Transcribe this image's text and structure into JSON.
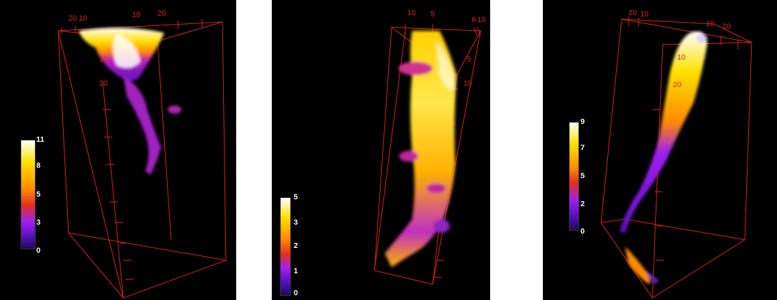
{
  "panels": [
    {
      "axis_labels": [
        "20",
        "10",
        "10",
        "20",
        "10",
        "20"
      ],
      "colorbar": {
        "ticks": [
          "11",
          "8",
          "5",
          "3",
          "0"
        ],
        "max": 11,
        "min": 0
      }
    },
    {
      "axis_labels": [
        "10",
        "5",
        "6",
        "10",
        "5",
        "10"
      ],
      "colorbar": {
        "ticks": [
          "5",
          "3",
          "2",
          "1",
          "0"
        ],
        "max": 5,
        "min": 0
      }
    },
    {
      "axis_labels": [
        "20",
        "10",
        "10",
        "20",
        "10",
        "20"
      ],
      "colorbar": {
        "ticks": [
          "9",
          "7",
          "5",
          "2",
          "0"
        ],
        "max": 9,
        "min": 0
      }
    }
  ],
  "colormap": [
    "#1a0a5a",
    "#5a10c0",
    "#a020f0",
    "#e03020",
    "#ff8a00",
    "#ffe000",
    "#ffffff"
  ],
  "box_color": "#e02020"
}
